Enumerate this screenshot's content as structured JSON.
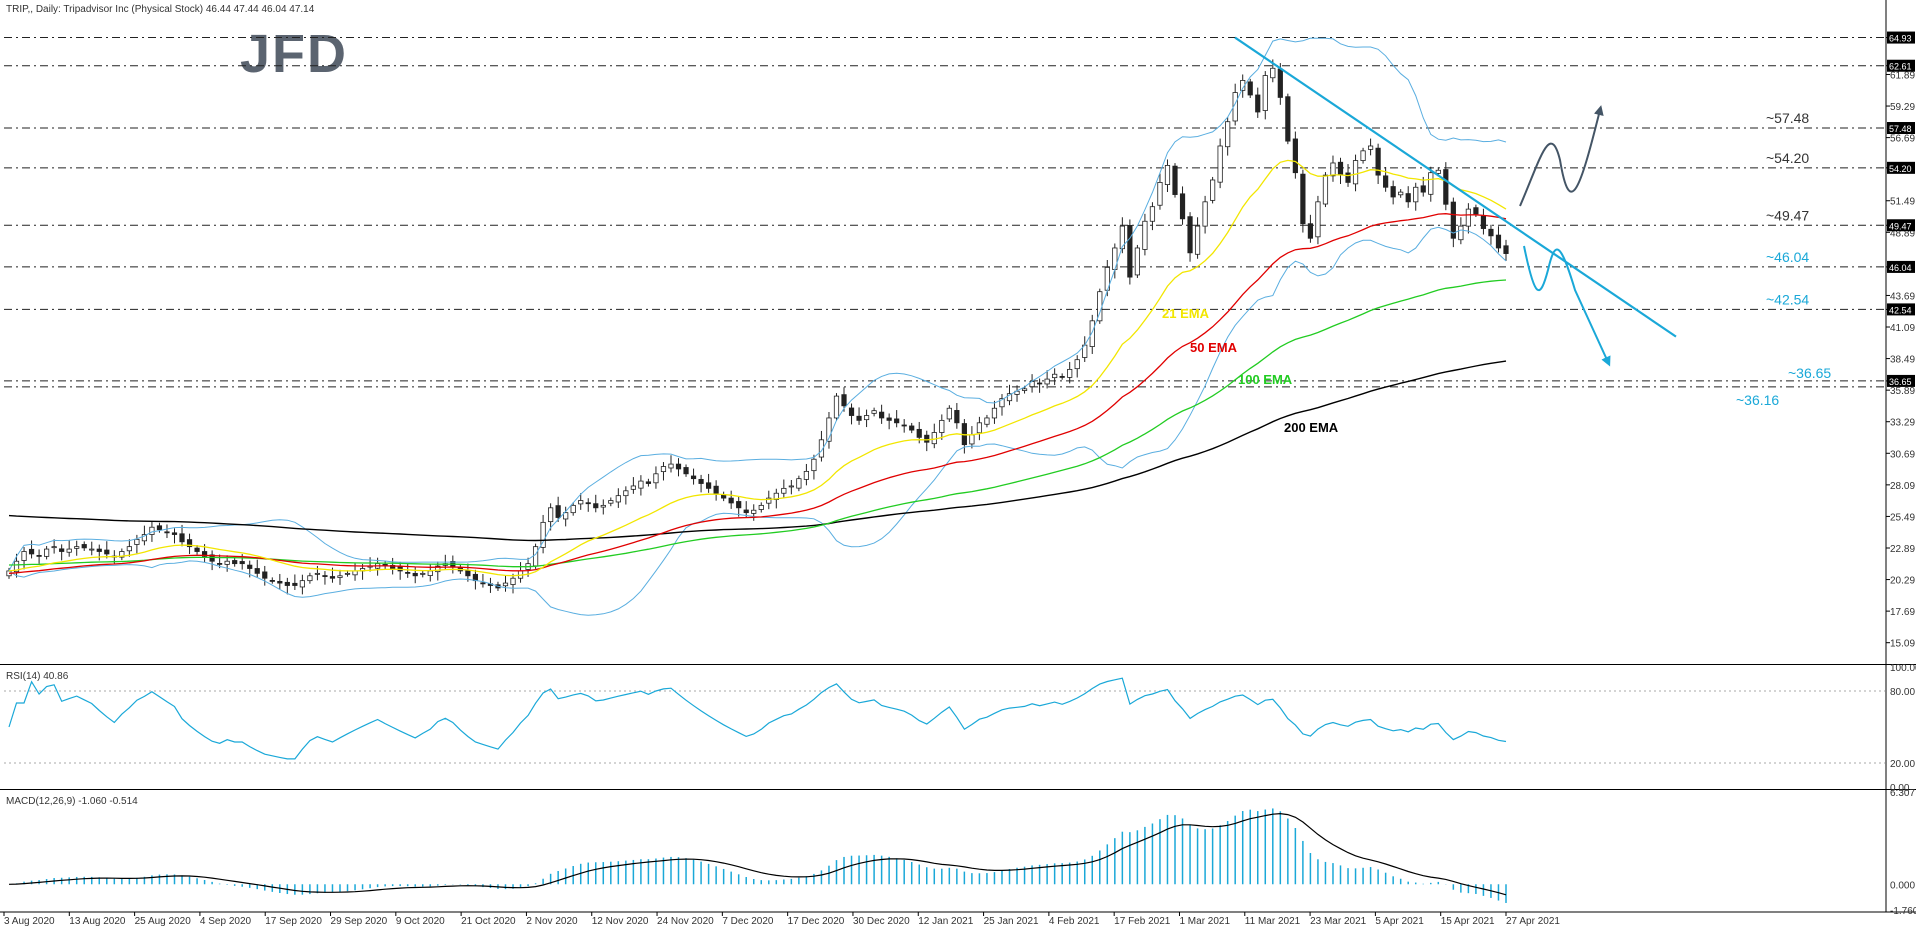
{
  "header": {
    "title": "TRIP,, Daily:  Tripadvisor Inc (Physical Stock)  46.44 47.44 46.04 47.14",
    "logo": "JFD"
  },
  "rsi": {
    "label": "RSI(14) 40.86",
    "levels": [
      "100.00",
      "80.00",
      "20.00",
      "0.00"
    ]
  },
  "macd": {
    "label": "MACD(12,26,9) -1.060 -0.514",
    "levels": [
      "6.307",
      "0.000",
      "-1.760"
    ]
  },
  "colors": {
    "bull": "#ffffff",
    "bear": "#222222",
    "ema21": "#f2e600",
    "ema50": "#e00000",
    "ema100": "#22cc22",
    "ema200": "#000000",
    "bands": "#5aaee0",
    "trend": "#1aa8d8",
    "rsi": "#1aa8d8",
    "macd_hist": "#1aa8d8",
    "macd_signal": "#000000",
    "arrow_up": "#445566",
    "arrow_down": "#1aa8d8"
  },
  "chart_data": {
    "type": "candlestick",
    "symbol": "TRIP",
    "timeframe": "Daily",
    "x_axis_labels": [
      "3 Aug 2020",
      "13 Aug 2020",
      "25 Aug 2020",
      "4 Sep 2020",
      "17 Sep 2020",
      "29 Sep 2020",
      "9 Oct 2020",
      "21 Oct 2020",
      "2 Nov 2020",
      "12 Nov 2020",
      "24 Nov 2020",
      "7 Dec 2020",
      "17 Dec 2020",
      "30 Dec 2020",
      "12 Jan 2021",
      "25 Jan 2021",
      "4 Feb 2021",
      "17 Feb 2021",
      "1 Mar 2021",
      "11 Mar 2021",
      "23 Mar 2021",
      "5 Apr 2021",
      "15 Apr 2021",
      "27 Apr 2021"
    ],
    "y_axis_labels": [
      "64.93",
      "62.61",
      "61.89",
      "59.29",
      "56.69",
      "54.20",
      "51.49",
      "49.47",
      "48.89",
      "46.04",
      "43.69",
      "42.54",
      "41.09",
      "38.49",
      "36.65",
      "35.89",
      "33.29",
      "30.69",
      "28.09",
      "25.49",
      "22.89",
      "20.29",
      "17.69",
      "15.09"
    ],
    "ylim": [
      13.5,
      67.2
    ],
    "closes": [
      21.0,
      21.8,
      22.6,
      22.4,
      22.2,
      22.8,
      23.0,
      22.6,
      22.8,
      23.0,
      22.9,
      22.8,
      22.6,
      22.4,
      22.2,
      22.6,
      23.0,
      23.6,
      24.0,
      24.6,
      24.4,
      24.2,
      24.0,
      23.4,
      23.0,
      22.6,
      22.2,
      21.8,
      21.6,
      21.8,
      21.6,
      21.6,
      21.2,
      20.8,
      20.4,
      20.2,
      20.0,
      19.8,
      19.8,
      20.2,
      20.6,
      20.8,
      20.6,
      20.4,
      20.6,
      20.8,
      21.0,
      21.2,
      21.4,
      21.6,
      21.4,
      21.2,
      21.0,
      20.8,
      20.6,
      20.8,
      21.0,
      21.4,
      21.6,
      21.4,
      21.0,
      20.6,
      20.2,
      20.0,
      19.8,
      19.6,
      20.0,
      20.4,
      21.0,
      21.6,
      23.0,
      25.0,
      26.2,
      25.4,
      25.8,
      26.4,
      26.8,
      26.6,
      26.2,
      26.4,
      26.8,
      27.2,
      27.6,
      28.0,
      28.4,
      28.2,
      29.0,
      29.6,
      29.8,
      29.4,
      29.0,
      28.6,
      28.2,
      27.8,
      27.4,
      27.0,
      26.6,
      26.2,
      25.8,
      26.0,
      26.4,
      27.0,
      27.4,
      27.8,
      28.0,
      28.6,
      29.2,
      30.2,
      31.8,
      33.6,
      35.4,
      34.6,
      33.8,
      33.4,
      33.8,
      34.2,
      33.6,
      33.4,
      33.2,
      33.0,
      32.6,
      32.0,
      31.6,
      32.4,
      33.4,
      34.4,
      33.2,
      31.4,
      32.2,
      33.2,
      33.6,
      34.4,
      35.2,
      35.6,
      35.8,
      36.0,
      36.6,
      36.4,
      36.8,
      37.2,
      37.0,
      37.6,
      38.4,
      39.6,
      41.6,
      44.0,
      46.0,
      47.6,
      49.4,
      45.2,
      47.6,
      49.8,
      51.0,
      53.0,
      54.4,
      52.0,
      50.0,
      47.2,
      49.4,
      51.4,
      53.2,
      56.0,
      58.0,
      60.4,
      61.4,
      60.2,
      58.8,
      61.8,
      62.4,
      60.0,
      56.4,
      53.8,
      49.6,
      48.4,
      51.4,
      53.6,
      54.6,
      53.6,
      53.0,
      54.8,
      55.6,
      56.0,
      53.6,
      52.6,
      51.8,
      52.2,
      51.4,
      52.6,
      52.2,
      53.8,
      54.0,
      51.2,
      48.4,
      49.4,
      50.8,
      50.4,
      49.2,
      48.6,
      47.6,
      47.14
    ]
  },
  "annotations": {
    "levels": [
      {
        "text": "~57.48",
        "value": 57.48,
        "color": "#333333"
      },
      {
        "text": "~54.20",
        "value": 54.2,
        "color": "#333333"
      },
      {
        "text": "~49.47",
        "value": 49.47,
        "color": "#333333"
      },
      {
        "text": "~46.04",
        "value": 46.04,
        "color": "#1aa8d8"
      },
      {
        "text": "~42.54",
        "value": 42.54,
        "color": "#1aa8d8"
      },
      {
        "text": "~36.65",
        "value": 36.65,
        "color": "#1aa8d8"
      },
      {
        "text": "~36.16",
        "value": 36.16,
        "color": "#1aa8d8"
      }
    ],
    "ema_labels": [
      {
        "text": "21 EMA",
        "color": "#f2e600"
      },
      {
        "text": "50 EMA",
        "color": "#e00000"
      },
      {
        "text": "100 EMA",
        "color": "#22cc22"
      },
      {
        "text": "200 EMA",
        "color": "#000000"
      }
    ]
  }
}
